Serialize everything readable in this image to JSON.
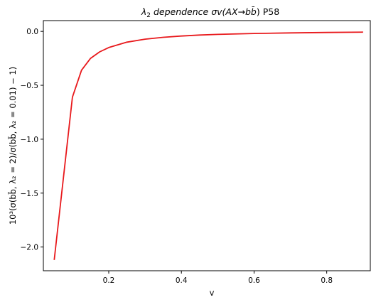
{
  "chart_data": {
    "type": "line",
    "title_parts": {
      "lambda": "λ",
      "subscript": "2",
      "middle": " dependence  σv(AX→b",
      "bbar": "b̄",
      "end": ") P58"
    },
    "xlabel": "v",
    "ylabel": "10³(σ(bb̄, λ₂ = 2)/σ(bb̄, λ₂ = 0.01) − 1)",
    "xlim": [
      0.02,
      0.92
    ],
    "ylim": [
      -2.22,
      0.1
    ],
    "xticks": [
      {
        "value": 0.2,
        "label": "0.2"
      },
      {
        "value": 0.4,
        "label": "0.4"
      },
      {
        "value": 0.6,
        "label": "0.6"
      },
      {
        "value": 0.8,
        "label": "0.8"
      }
    ],
    "yticks": [
      {
        "value": 0.0,
        "label": "0.0"
      },
      {
        "value": -0.5,
        "label": "−0.5"
      },
      {
        "value": -1.0,
        "label": "−1.0"
      },
      {
        "value": -1.5,
        "label": "−1.5"
      },
      {
        "value": -2.0,
        "label": "−2.0"
      }
    ],
    "grid": false,
    "series": [
      {
        "color": "#e8191c",
        "x": [
          0.05,
          0.1,
          0.125,
          0.15,
          0.175,
          0.2,
          0.25,
          0.3,
          0.35,
          0.4,
          0.45,
          0.5,
          0.6,
          0.7,
          0.8,
          0.9
        ],
        "y": [
          -2.12,
          -0.61,
          -0.36,
          -0.25,
          -0.19,
          -0.15,
          -0.1,
          -0.072,
          -0.055,
          -0.043,
          -0.034,
          -0.028,
          -0.019,
          -0.014,
          -0.01,
          -0.007
        ]
      }
    ]
  }
}
